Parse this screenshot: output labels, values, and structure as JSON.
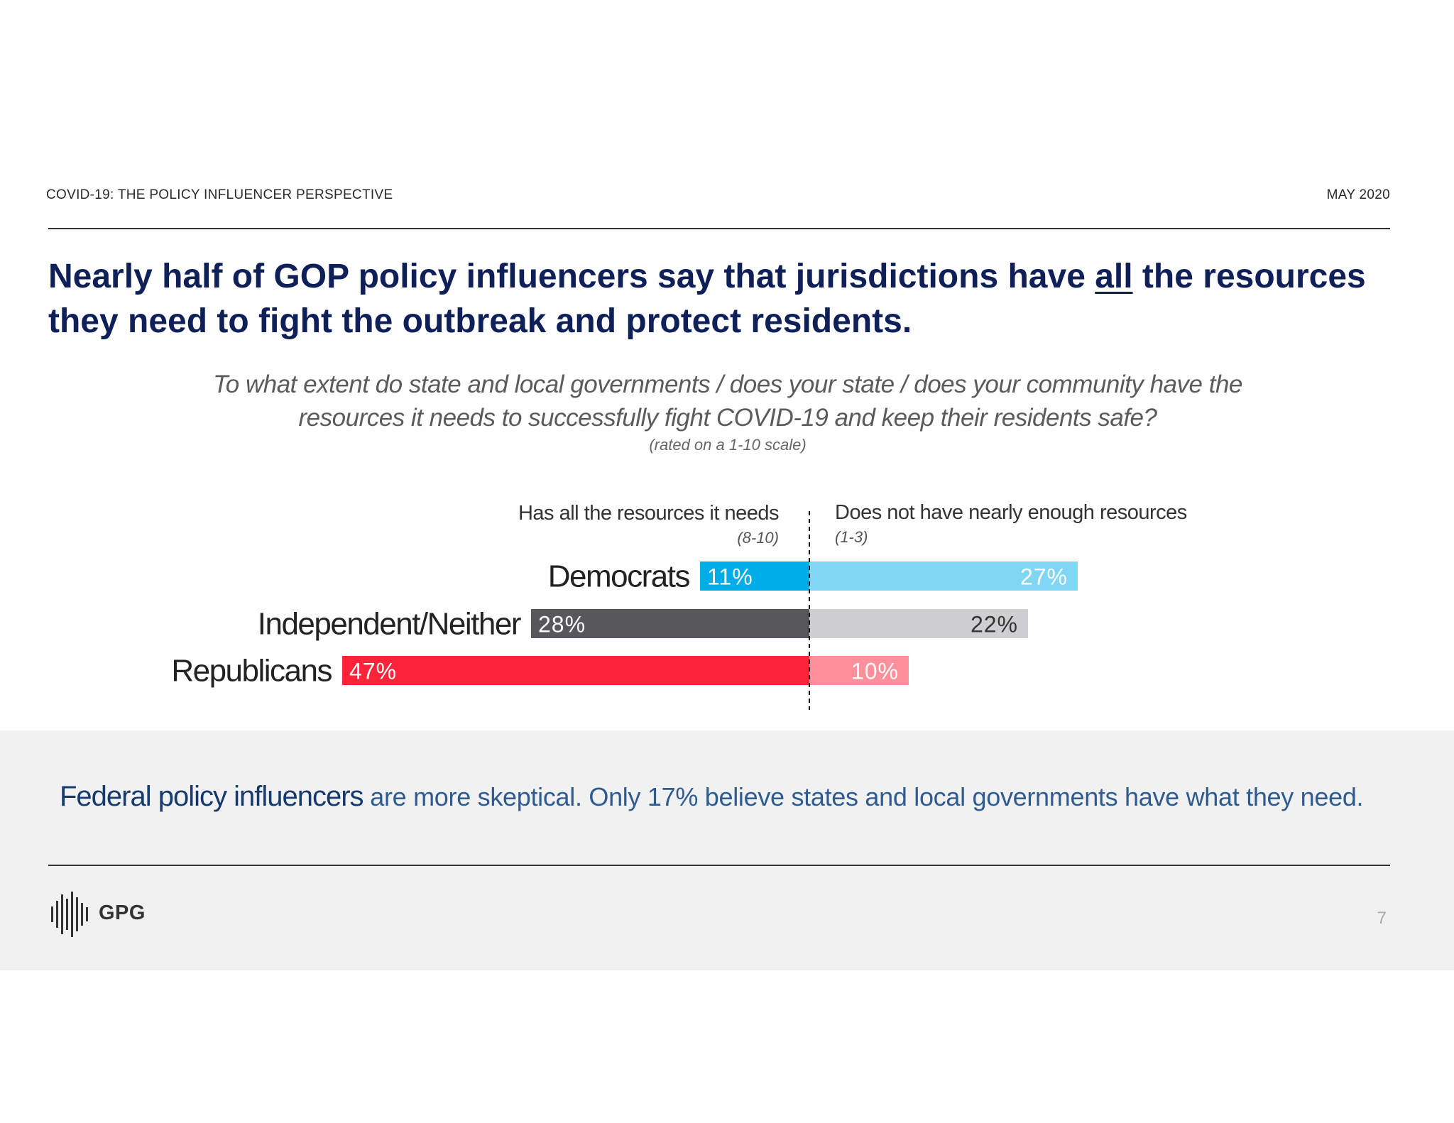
{
  "header": {
    "left": "COVID-19: THE POLICY INFLUENCER PERSPECTIVE",
    "right": "MAY 2020"
  },
  "headline": {
    "part1": "Nearly half of GOP policy influencers say that jurisdictions have ",
    "emphasis": "all",
    "part2": " the resources they need to fight the outbreak and protect residents."
  },
  "question": {
    "line1": "To what extent do state and local governments / does your state / does your community have the",
    "line2": "resources it needs to successfully fight COVID-19 and keep their residents safe?",
    "scale_note": "(rated on a 1-10 scale)"
  },
  "chart_data": {
    "type": "bar",
    "orientation": "horizontal-diverging",
    "categories": [
      "Democrats",
      "Independent/Neither",
      "Republicans"
    ],
    "series": [
      {
        "name": "Has all the resources it needs",
        "sub": "(8-10)",
        "values": [
          11,
          28,
          47
        ],
        "colors": [
          "#00ade6",
          "#58575b",
          "#fe2338"
        ],
        "label_colors": [
          "#ffffff",
          "#ffffff",
          "#ffffff"
        ]
      },
      {
        "name": "Does not have nearly enough resources",
        "sub": "(1-3)",
        "values": [
          27,
          22,
          10
        ],
        "colors": [
          "#81d6f5",
          "#cfced1",
          "#ff8f9b"
        ],
        "label_colors": [
          "#ffffff",
          "#333333",
          "#ffffff"
        ]
      }
    ],
    "value_suffix": "%",
    "divider": "dashed"
  },
  "takeaway": {
    "lead": "Federal policy influencers",
    "rest": " are more skeptical. Only 17% believe states and local governments have what they need."
  },
  "footer": {
    "logo_text": "GPG",
    "page_number": "7"
  }
}
